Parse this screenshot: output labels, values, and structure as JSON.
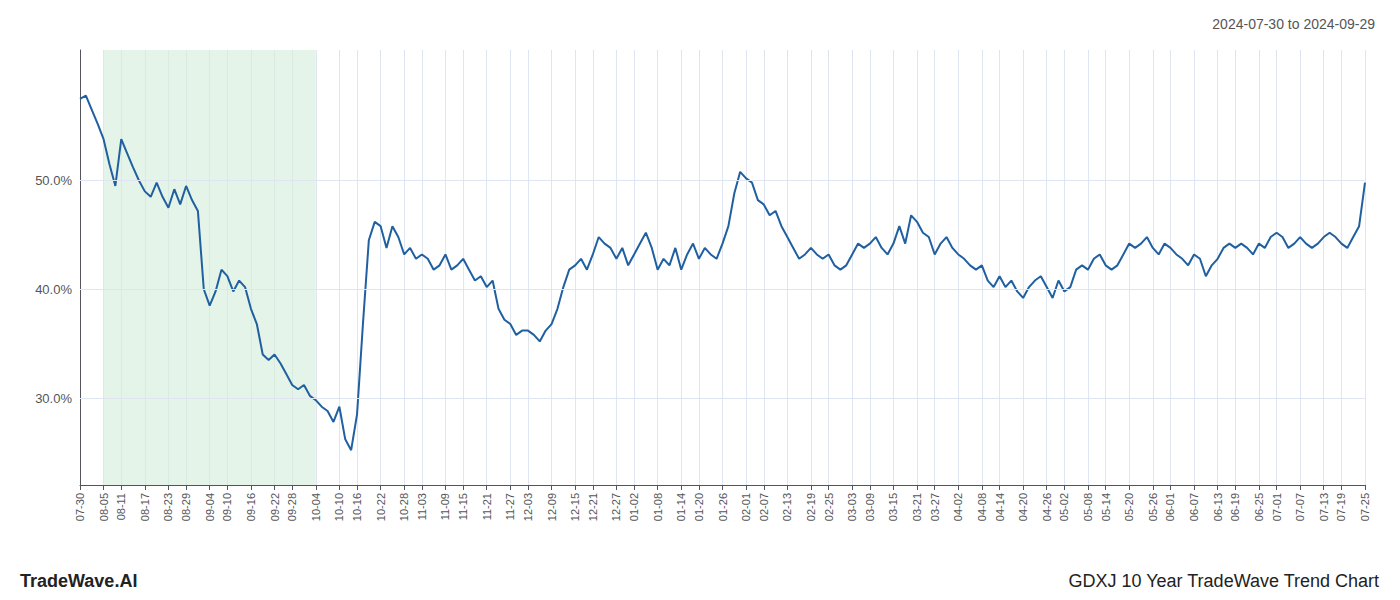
{
  "chart_data": {
    "type": "line",
    "title": "2024-07-30 to 2024-09-29",
    "annotations": [
      "TradeWave.AI",
      "GDXJ 10 Year TradeWave Trend Chart"
    ],
    "color": "#2060a0",
    "shade": {
      "from": "08-05",
      "to": "10-04",
      "color": "#d4edda"
    },
    "grid": true,
    "ylim": [
      22,
      62
    ],
    "yticks": [
      {
        "value": 30.0,
        "label": "30.0%"
      },
      {
        "value": 40.0,
        "label": "40.0%"
      },
      {
        "value": 50.0,
        "label": "50.0%"
      }
    ],
    "categories": [
      "07-30",
      null,
      null,
      null,
      "08-05",
      null,
      null,
      "08-11",
      null,
      null,
      null,
      "08-17",
      null,
      null,
      null,
      "08-23",
      null,
      null,
      "08-29",
      null,
      null,
      null,
      "09-04",
      null,
      null,
      "09-10",
      null,
      null,
      null,
      "09-16",
      null,
      null,
      null,
      "09-22",
      null,
      null,
      "09-28",
      null,
      null,
      null,
      "10-04",
      null,
      null,
      null,
      "10-10",
      null,
      null,
      "10-16",
      null,
      null,
      null,
      "10-22",
      null,
      null,
      null,
      "10-28",
      null,
      null,
      "11-03",
      null,
      null,
      null,
      "11-09",
      null,
      null,
      "11-15",
      null,
      null,
      null,
      "11-21",
      null,
      null,
      null,
      "11-27",
      null,
      null,
      "12-03",
      null,
      null,
      null,
      "12-09",
      null,
      null,
      null,
      "12-15",
      null,
      null,
      "12-21",
      null,
      null,
      null,
      "12-27",
      null,
      null,
      "01-02",
      null,
      null,
      null,
      "01-08",
      null,
      null,
      null,
      "01-14",
      null,
      null,
      "01-20",
      null,
      null,
      null,
      "01-26",
      null,
      null,
      null,
      "02-01",
      null,
      null,
      "02-07",
      null,
      null,
      null,
      "02-13",
      null,
      null,
      null,
      "02-19",
      null,
      null,
      "02-25",
      null,
      null,
      null,
      "03-03",
      null,
      null,
      "03-09",
      null,
      null,
      null,
      "03-15",
      null,
      null,
      null,
      "03-21",
      null,
      null,
      "03-27",
      null,
      null,
      null,
      "04-02",
      null,
      null,
      null,
      "04-08",
      null,
      null,
      "04-14",
      null,
      null,
      null,
      "04-20",
      null,
      null,
      null,
      "04-26",
      null,
      null,
      "05-02",
      null,
      null,
      null,
      "05-08",
      null,
      null,
      "05-14",
      null,
      null,
      null,
      "05-20",
      null,
      null,
      null,
      "05-26",
      null,
      null,
      "06-01",
      null,
      null,
      null,
      "06-07",
      null,
      null,
      null,
      "06-13",
      null,
      null,
      "06-19",
      null,
      null,
      null,
      "06-25",
      null,
      null,
      "07-01",
      null,
      null,
      null,
      "07-07",
      null,
      null,
      null,
      "07-13",
      null,
      null,
      "07-19",
      null,
      null,
      null,
      "07-25"
    ],
    "values": [
      57.5,
      57.8,
      56.5,
      55.2,
      53.8,
      51.5,
      49.5,
      53.8,
      52.5,
      51.2,
      50.0,
      49.0,
      48.5,
      49.8,
      48.5,
      47.5,
      49.2,
      47.8,
      49.5,
      48.2,
      47.2,
      40.0,
      38.5,
      39.8,
      41.8,
      41.2,
      39.8,
      40.8,
      40.2,
      38.2,
      36.8,
      34.0,
      33.5,
      34.0,
      33.2,
      32.2,
      31.2,
      30.8,
      31.2,
      30.2,
      29.8,
      29.2,
      28.8,
      27.8,
      29.2,
      26.2,
      25.2,
      28.5,
      36.8,
      44.5,
      46.2,
      45.8,
      43.8,
      45.8,
      44.8,
      43.2,
      43.8,
      42.8,
      43.2,
      42.8,
      41.8,
      42.2,
      43.2,
      41.8,
      42.2,
      42.8,
      41.8,
      40.8,
      41.2,
      40.2,
      40.8,
      38.2,
      37.2,
      36.8,
      35.8,
      36.2,
      36.2,
      35.8,
      35.2,
      36.2,
      36.8,
      38.2,
      40.2,
      41.8,
      42.2,
      42.8,
      41.8,
      43.2,
      44.8,
      44.2,
      43.8,
      42.8,
      43.8,
      42.2,
      43.2,
      44.2,
      45.2,
      43.8,
      41.8,
      42.8,
      42.2,
      43.8,
      41.8,
      43.2,
      44.2,
      42.8,
      43.8,
      43.2,
      42.8,
      44.2,
      45.8,
      48.8,
      50.8,
      50.2,
      49.8,
      48.2,
      47.8,
      46.8,
      47.2,
      45.8,
      44.8,
      43.8,
      42.8,
      43.2,
      43.8,
      43.2,
      42.8,
      43.2,
      42.2,
      41.8,
      42.2,
      43.2,
      44.2,
      43.8,
      44.2,
      44.8,
      43.8,
      43.2,
      44.2,
      45.8,
      44.2,
      46.8,
      46.2,
      45.2,
      44.8,
      43.2,
      44.2,
      44.8,
      43.8,
      43.2,
      42.8,
      42.2,
      41.8,
      42.2,
      40.8,
      40.2,
      41.2,
      40.2,
      40.8,
      39.8,
      39.2,
      40.2,
      40.8,
      41.2,
      40.2,
      39.2,
      40.8,
      39.8,
      40.2,
      41.8,
      42.2,
      41.8,
      42.8,
      43.2,
      42.2,
      41.8,
      42.2,
      43.2,
      44.2,
      43.8,
      44.2,
      44.8,
      43.8,
      43.2,
      44.2,
      43.8,
      43.2,
      42.8,
      42.2,
      43.2,
      42.8,
      41.2,
      42.2,
      42.8,
      43.8,
      44.2,
      43.8,
      44.2,
      43.8,
      43.2,
      44.2,
      43.8,
      44.8,
      45.2,
      44.8,
      43.8,
      44.2,
      44.8,
      44.2,
      43.8,
      44.2,
      44.8,
      45.2,
      44.8,
      44.2,
      43.8,
      44.8,
      45.8,
      49.8
    ]
  }
}
